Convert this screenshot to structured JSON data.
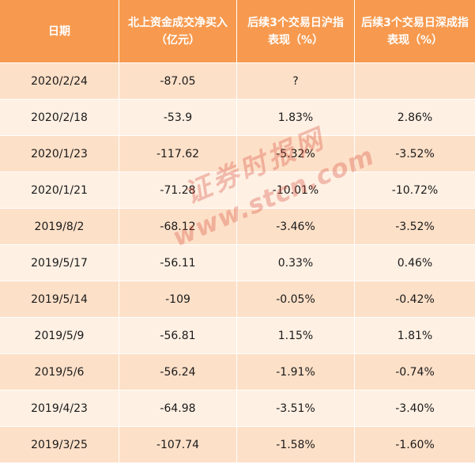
{
  "header": {
    "col0": "日期",
    "col1": "北上资金成交净买入（亿元）",
    "col2": "后续3个交易日沪指表现（%）",
    "col3": "后续3个交易日深成指表现（%）"
  },
  "rows": [
    {
      "date": "2020/2/24",
      "net": "-87.05",
      "sh": "?",
      "sz": ""
    },
    {
      "date": "2020/2/18",
      "net": "-53.9",
      "sh": "1.83%",
      "sz": "2.86%"
    },
    {
      "date": "2020/1/23",
      "net": "-117.62",
      "sh": "-5.32%",
      "sz": "-3.52%"
    },
    {
      "date": "2020/1/21",
      "net": "-71.28",
      "sh": "-10.01%",
      "sz": "-10.72%"
    },
    {
      "date": "2019/8/2",
      "net": "-68.12",
      "sh": "-3.46%",
      "sz": "-3.52%"
    },
    {
      "date": "2019/5/17",
      "net": "-56.11",
      "sh": "0.33%",
      "sz": "0.46%"
    },
    {
      "date": "2019/5/14",
      "net": "-109",
      "sh": "-0.05%",
      "sz": "-0.42%"
    },
    {
      "date": "2019/5/9",
      "net": "-56.81",
      "sh": "1.15%",
      "sz": "1.81%"
    },
    {
      "date": "2019/5/6",
      "net": "-56.24",
      "sh": "-1.91%",
      "sz": "-0.74%"
    },
    {
      "date": "2019/4/23",
      "net": "-64.98",
      "sh": "-3.51%",
      "sz": "-3.40%"
    },
    {
      "date": "2019/3/25",
      "net": "-107.74",
      "sh": "-1.58%",
      "sz": "-1.60%"
    }
  ],
  "watermark": {
    "cn": "证券时报网",
    "en": "www.stcn.com"
  },
  "colors": {
    "header_bg": "#f79a4f",
    "row_odd": "#fde0c8",
    "row_even": "#fef0e3",
    "watermark": "#d64a3a"
  }
}
